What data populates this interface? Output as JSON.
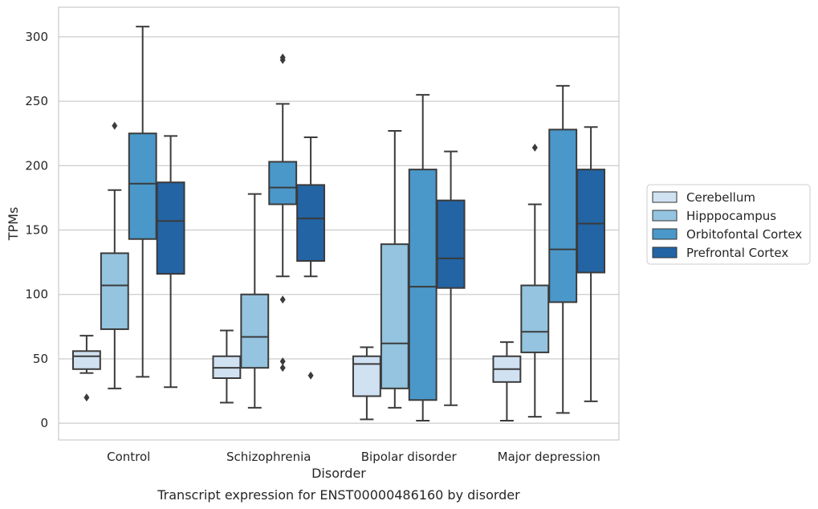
{
  "chart_data": {
    "type": "box",
    "title": "",
    "caption": "Transcript expression for ENST00000486160 by disorder",
    "xlabel": "Disorder",
    "ylabel": "TPMs",
    "ylim": [
      -13,
      323
    ],
    "yticks": [
      0,
      50,
      100,
      150,
      200,
      250,
      300
    ],
    "grid": "horizontal",
    "legend_position": "right",
    "categories": [
      "Control",
      "Schizophrenia",
      "Bipolar disorder",
      "Major depression"
    ],
    "series": [
      {
        "name": "Cerebellum",
        "color": "#d0e1f2",
        "boxes": [
          {
            "whislo": 39,
            "q1": 42,
            "med": 52,
            "q3": 56,
            "whishi": 68,
            "fliers": [
              20
            ]
          },
          {
            "whislo": 16,
            "q1": 35,
            "med": 43,
            "q3": 52,
            "whishi": 72,
            "fliers": []
          },
          {
            "whislo": 3,
            "q1": 21,
            "med": 46,
            "q3": 52,
            "whishi": 59,
            "fliers": []
          },
          {
            "whislo": 2,
            "q1": 32,
            "med": 42,
            "q3": 52,
            "whishi": 63,
            "fliers": []
          }
        ]
      },
      {
        "name": "Hipppocampus",
        "color": "#94c4df",
        "boxes": [
          {
            "whislo": 27,
            "q1": 73,
            "med": 107,
            "q3": 132,
            "whishi": 181,
            "fliers": [
              231
            ]
          },
          {
            "whislo": 12,
            "q1": 43,
            "med": 67,
            "q3": 100,
            "whishi": 178,
            "fliers": []
          },
          {
            "whislo": 12,
            "q1": 27,
            "med": 62,
            "q3": 139,
            "whishi": 227,
            "fliers": []
          },
          {
            "whislo": 5,
            "q1": 55,
            "med": 71,
            "q3": 107,
            "whishi": 170,
            "fliers": [
              214
            ]
          }
        ]
      },
      {
        "name": "Orbitofontal Cortex",
        "color": "#4a98c9",
        "boxes": [
          {
            "whislo": 36,
            "q1": 143,
            "med": 186,
            "q3": 225,
            "whishi": 308,
            "fliers": []
          },
          {
            "whislo": 114,
            "q1": 170,
            "med": 183,
            "q3": 203,
            "whishi": 248,
            "fliers": [
              96,
              48,
              43,
              282,
              284
            ]
          },
          {
            "whislo": 2,
            "q1": 18,
            "med": 106,
            "q3": 197,
            "whishi": 255,
            "fliers": []
          },
          {
            "whislo": 8,
            "q1": 94,
            "med": 135,
            "q3": 228,
            "whishi": 262,
            "fliers": []
          }
        ]
      },
      {
        "name": "Prefrontal Cortex",
        "color": "#2264a4",
        "boxes": [
          {
            "whislo": 28,
            "q1": 116,
            "med": 157,
            "q3": 187,
            "whishi": 223,
            "fliers": []
          },
          {
            "whislo": 114,
            "q1": 126,
            "med": 159,
            "q3": 185,
            "whishi": 222,
            "fliers": [
              37
            ]
          },
          {
            "whislo": 14,
            "q1": 105,
            "med": 128,
            "q3": 173,
            "whishi": 211,
            "fliers": []
          },
          {
            "whislo": 17,
            "q1": 117,
            "med": 155,
            "q3": 197,
            "whishi": 230,
            "fliers": []
          }
        ]
      }
    ]
  }
}
